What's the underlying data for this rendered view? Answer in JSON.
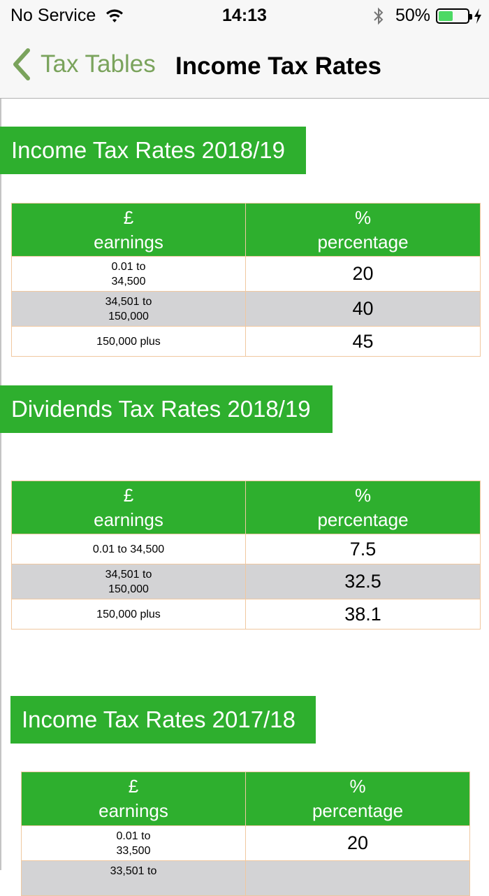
{
  "status": {
    "carrier": "No Service",
    "time": "14:13",
    "battery": "50%",
    "battery_level": 0.5
  },
  "nav": {
    "back_label": "Tax Tables",
    "title": "Income Tax Rates"
  },
  "sections": [
    {
      "title": "Income Tax Rates 2018/19",
      "headers": {
        "earn_symbol": "£",
        "earn_label": "earnings",
        "pct_symbol": "%",
        "pct_label": "percentage"
      },
      "rows": [
        {
          "earnings_line1": "0.01 to",
          "earnings_line2": "34,500",
          "percentage": "20"
        },
        {
          "earnings_line1": "34,501 to",
          "earnings_line2": "150,000",
          "percentage": "40"
        },
        {
          "earnings_line1": "150,000 plus",
          "earnings_line2": "",
          "percentage": "45"
        }
      ]
    },
    {
      "title": "Dividends Tax Rates 2018/19",
      "headers": {
        "earn_symbol": "£",
        "earn_label": "earnings",
        "pct_symbol": "%",
        "pct_label": "percentage"
      },
      "rows": [
        {
          "earnings_line1": "0.01 to 34,500",
          "earnings_line2": "",
          "percentage": "7.5"
        },
        {
          "earnings_line1": "34,501 to",
          "earnings_line2": "150,000",
          "percentage": "32.5"
        },
        {
          "earnings_line1": "150,000 plus",
          "earnings_line2": "",
          "percentage": "38.1"
        }
      ]
    },
    {
      "title": "Income Tax Rates 2017/18",
      "headers": {
        "earn_symbol": "£",
        "earn_label": "earnings",
        "pct_symbol": "%",
        "pct_label": "percentage"
      },
      "rows": [
        {
          "earnings_line1": "0.01 to",
          "earnings_line2": "33,500",
          "percentage": "20"
        },
        {
          "earnings_line1": "33,501 to",
          "earnings_line2": "",
          "percentage": ""
        }
      ]
    }
  ],
  "colors": {
    "accent_green": "#2eaf2e",
    "back_green": "#7aa35c",
    "alt_row": "#d3d3d5",
    "cell_border": "#f0c8a0"
  }
}
